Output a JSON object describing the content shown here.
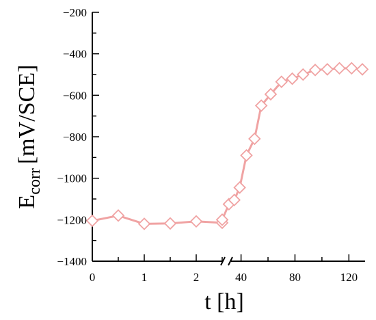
{
  "chart_data": {
    "type": "line",
    "xlabel": "t [h]",
    "ylabel_main": "E",
    "ylabel_sub": "corr",
    "ylabel_unit": "[mV/SCE]",
    "ylim": [
      -1400,
      -200
    ],
    "yticks": [
      "-1400",
      "-1200",
      "-1000",
      "-800",
      "-600",
      "-400",
      "-200"
    ],
    "axis_break": true,
    "xtick_labels": [
      "0",
      "1",
      "2",
      "40",
      "80",
      "120"
    ],
    "x_segments": [
      {
        "range": [
          0,
          2.5
        ],
        "ticks": [
          0,
          0.5,
          1,
          1.5,
          2,
          2.5
        ],
        "labeled": [
          0,
          1,
          2
        ]
      },
      {
        "range": [
          26,
          132
        ],
        "ticks": [
          40,
          60,
          80,
          100,
          120
        ],
        "labeled": [
          40,
          80,
          120
        ]
      }
    ],
    "color": "#f0a3a3",
    "series": [
      {
        "marker": "diamond",
        "points": [
          {
            "x": 0,
            "y": -1205
          },
          {
            "x": 0.5,
            "y": -1180
          },
          {
            "x": 1,
            "y": -1220
          },
          {
            "x": 1.5,
            "y": -1218
          },
          {
            "x": 2,
            "y": -1208
          },
          {
            "x": 2.5,
            "y": -1215
          },
          {
            "x": 26,
            "y": -1200
          },
          {
            "x": 31,
            "y": -1125
          },
          {
            "x": 35,
            "y": -1105
          },
          {
            "x": 39,
            "y": -1045
          },
          {
            "x": 44,
            "y": -890
          },
          {
            "x": 50,
            "y": -810
          },
          {
            "x": 55,
            "y": -650
          },
          {
            "x": 62,
            "y": -595
          },
          {
            "x": 70,
            "y": -535
          },
          {
            "x": 78,
            "y": -520
          },
          {
            "x": 86,
            "y": -500
          },
          {
            "x": 95,
            "y": -478
          },
          {
            "x": 104,
            "y": -475
          },
          {
            "x": 113,
            "y": -470
          },
          {
            "x": 122,
            "y": -470
          },
          {
            "x": 130,
            "y": -475
          }
        ]
      }
    ]
  }
}
